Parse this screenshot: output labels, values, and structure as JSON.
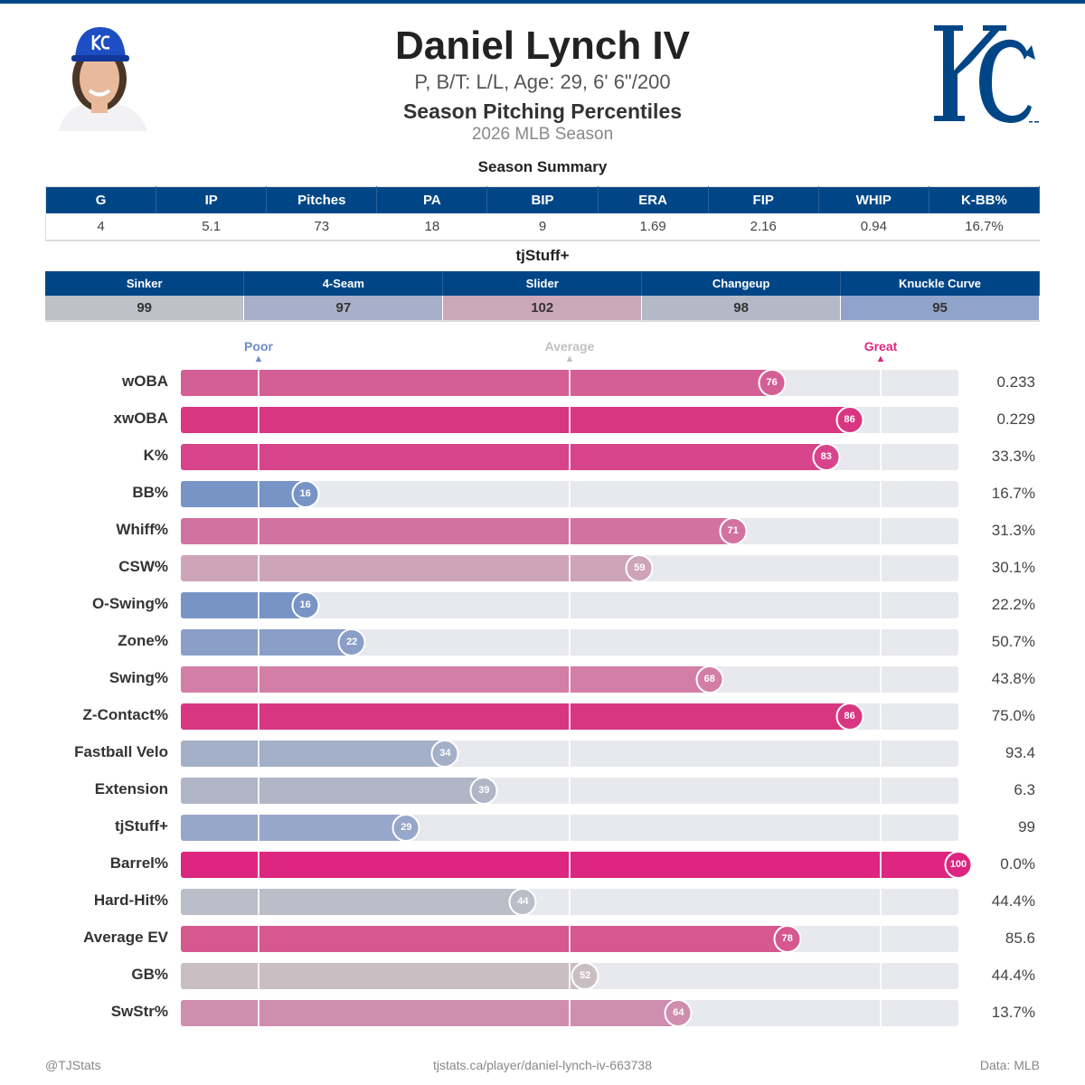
{
  "header": {
    "name": "Daniel Lynch IV",
    "bio": "P, B/T: L/L, Age: 29, 6' 6\"/200",
    "title": "Season Pitching Percentiles",
    "season": "2026 MLB Season",
    "logo_text": "KC",
    "logo_tm": "TM"
  },
  "summary": {
    "title": "Season Summary",
    "headers": [
      "G",
      "IP",
      "Pitches",
      "PA",
      "BIP",
      "ERA",
      "FIP",
      "WHIP",
      "K-BB%"
    ],
    "values": [
      "4",
      "5.1",
      "73",
      "18",
      "9",
      "1.69",
      "2.16",
      "0.94",
      "16.7%"
    ]
  },
  "tjstuff": {
    "title": "tjStuff+",
    "pitches": [
      {
        "name": "Sinker",
        "value": "99",
        "color": "#bfc1c9"
      },
      {
        "name": "4-Seam",
        "value": "97",
        "color": "#a7b0c8"
      },
      {
        "name": "Slider",
        "value": "102",
        "color": "#cba8b8"
      },
      {
        "name": "Changeup",
        "value": "98",
        "color": "#b4b9c8"
      },
      {
        "name": "Knuckle Curve",
        "value": "95",
        "color": "#90a3ca"
      }
    ]
  },
  "chart_data": {
    "type": "bar",
    "orientation": "horizontal",
    "xlim": [
      0,
      100
    ],
    "reference_markers": [
      {
        "label": "Poor",
        "at": 10,
        "color": "#6f8cc8"
      },
      {
        "label": "Average",
        "at": 50,
        "color": "#c0c0c0"
      },
      {
        "label": "Great",
        "at": 90,
        "color": "#dc267f"
      }
    ],
    "categories": [
      "wOBA",
      "xwOBA",
      "K%",
      "BB%",
      "Whiff%",
      "CSW%",
      "O-Swing%",
      "Zone%",
      "Swing%",
      "Z-Contact%",
      "Fastball Velo",
      "Extension",
      "tjStuff+",
      "Barrel%",
      "Hard-Hit%",
      "Average EV",
      "GB%",
      "SwStr%"
    ],
    "percentiles": [
      76,
      86,
      83,
      16,
      71,
      59,
      16,
      22,
      68,
      86,
      34,
      39,
      29,
      100,
      44,
      78,
      52,
      64
    ],
    "stat_values": [
      "0.233",
      "0.229",
      "33.3%",
      "16.7%",
      "31.3%",
      "30.1%",
      "22.2%",
      "50.7%",
      "43.8%",
      "75.0%",
      "93.4",
      "6.3",
      "99",
      "0.0%",
      "44.4%",
      "85.6",
      "44.4%",
      "13.7%"
    ],
    "colors": [
      "#d45f96",
      "#d93682",
      "#d8448b",
      "#7894c6",
      "#d272a0",
      "#cea4b8",
      "#7894c6",
      "#8a9ec8",
      "#d37ea6",
      "#d93682",
      "#a4afc8",
      "#b0b6c6",
      "#97a7c9",
      "#dc267f",
      "#bbbec8",
      "#d5588f",
      "#c9bec2",
      "#cf8eae"
    ]
  },
  "footer": {
    "left": "@TJStats",
    "center": "tjstats.ca/player/daniel-lynch-iv-663738",
    "right": "Data: MLB"
  }
}
